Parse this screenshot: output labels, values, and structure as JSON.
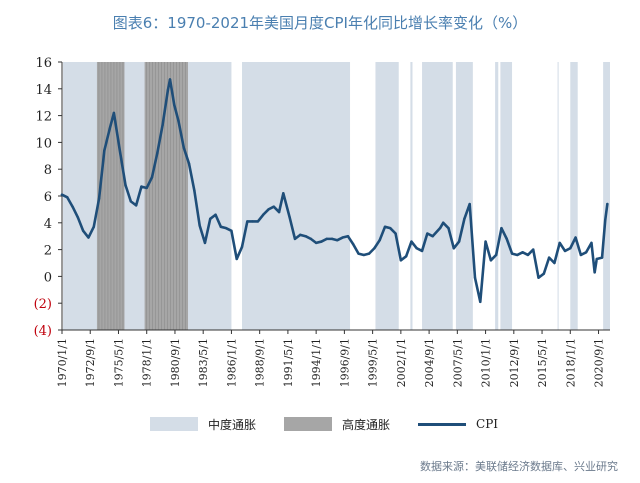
{
  "title": "图表6：1970-2021年美国月度CPI年化同比增长率变化（%）",
  "source": "数据来源：美联储经济数据库、兴业研究",
  "colors": {
    "title": "#4a7fb0",
    "mid_band": "#d4dde7",
    "high_band": "#a6a6a6",
    "cpi_line": "#1f4e79",
    "negative_tick": "#c0000c"
  },
  "legend": {
    "mid": "中度通胀",
    "high": "高度通胀",
    "cpi": "CPI"
  },
  "chart_data": {
    "type": "line",
    "title": "图表6：1970-2021年美国月度CPI年化同比增长率变化（%）",
    "ylim": [
      -4,
      16
    ],
    "y_ticks": [
      16,
      14,
      12,
      10,
      8,
      6,
      4,
      2,
      0,
      -2,
      -4
    ],
    "y_tick_labels": [
      "16",
      "14",
      "12",
      "10",
      "8",
      "6",
      "4",
      "2",
      "0",
      "(2)",
      "(4)"
    ],
    "xlim": [
      1970.0,
      2021.75
    ],
    "x_tick_labels": [
      "1970/1/1",
      "1972/9/1",
      "1975/5/1",
      "1978/1/1",
      "1980/9/1",
      "1983/5/1",
      "1986/1/1",
      "1988/9/1",
      "1991/5/1",
      "1994/1/1",
      "1996/9/1",
      "1999/5/1",
      "2002/1/1",
      "2004/9/1",
      "2007/5/1",
      "2010/1/1",
      "2012/9/1",
      "2015/5/1",
      "2018/1/1",
      "2020/9/1"
    ],
    "x_tick_values": [
      1970.0,
      1972.667,
      1975.333,
      1978.0,
      1980.667,
      1983.333,
      1986.0,
      1988.667,
      1991.333,
      1994.0,
      1996.667,
      1999.333,
      2002.0,
      2004.667,
      2007.333,
      2010.0,
      2012.667,
      2015.333,
      2018.0,
      2020.667
    ],
    "shaded_periods": {
      "mid_inflation": [
        [
          1970.1,
          1986.0
        ],
        [
          1987.0,
          1997.2
        ],
        [
          1999.6,
          2001.8
        ],
        [
          2002.9,
          2003.1
        ],
        [
          2004.0,
          2006.9
        ],
        [
          2007.2,
          2008.8
        ],
        [
          2010.9,
          2011.2
        ],
        [
          2011.4,
          2012.5
        ],
        [
          2016.8,
          2016.9
        ],
        [
          2018.0,
          2018.7
        ],
        [
          2021.1,
          2021.75
        ]
      ],
      "high_inflation": [
        [
          1973.3,
          1975.9
        ],
        [
          1977.8,
          1981.9
        ]
      ]
    },
    "series": [
      {
        "name": "CPI",
        "x": [
          1970.0,
          1970.5,
          1971.0,
          1971.5,
          1972.0,
          1972.5,
          1973.0,
          1973.5,
          1974.0,
          1974.5,
          1974.9,
          1975.5,
          1976.0,
          1976.5,
          1977.0,
          1977.5,
          1978.0,
          1978.5,
          1979.0,
          1979.5,
          1980.0,
          1980.2,
          1980.6,
          1981.0,
          1981.5,
          1982.0,
          1982.5,
          1983.0,
          1983.5,
          1984.0,
          1984.5,
          1985.0,
          1985.5,
          1986.0,
          1986.5,
          1987.0,
          1987.5,
          1988.0,
          1988.5,
          1989.0,
          1989.5,
          1990.0,
          1990.5,
          1990.9,
          1991.5,
          1992.0,
          1992.5,
          1993.0,
          1993.5,
          1994.0,
          1994.5,
          1995.0,
          1995.5,
          1996.0,
          1996.5,
          1997.0,
          1997.5,
          1998.0,
          1998.5,
          1999.0,
          1999.5,
          2000.0,
          2000.5,
          2001.0,
          2001.5,
          2002.0,
          2002.5,
          2003.0,
          2003.5,
          2004.0,
          2004.5,
          2005.0,
          2005.7,
          2006.0,
          2006.5,
          2007.0,
          2007.5,
          2008.0,
          2008.5,
          2009.0,
          2009.5,
          2010.0,
          2010.5,
          2011.0,
          2011.5,
          2012.0,
          2012.5,
          2013.0,
          2013.5,
          2014.0,
          2014.5,
          2015.0,
          2015.5,
          2016.0,
          2016.5,
          2017.0,
          2017.5,
          2018.0,
          2018.5,
          2019.0,
          2019.5,
          2020.0,
          2020.3,
          2020.5,
          2021.0,
          2021.3,
          2021.5
        ],
        "values": [
          6.1,
          5.9,
          5.2,
          4.4,
          3.4,
          2.9,
          3.7,
          5.8,
          9.4,
          11.0,
          12.2,
          9.2,
          6.8,
          5.6,
          5.3,
          6.7,
          6.6,
          7.4,
          9.2,
          11.3,
          13.9,
          14.7,
          12.8,
          11.6,
          9.6,
          8.4,
          6.4,
          3.8,
          2.5,
          4.3,
          4.6,
          3.7,
          3.6,
          3.4,
          1.3,
          2.2,
          4.1,
          4.1,
          4.1,
          4.6,
          5.0,
          5.2,
          4.8,
          6.2,
          4.4,
          2.8,
          3.1,
          3.0,
          2.8,
          2.5,
          2.6,
          2.8,
          2.8,
          2.7,
          2.9,
          3.0,
          2.4,
          1.7,
          1.6,
          1.7,
          2.1,
          2.7,
          3.7,
          3.6,
          3.2,
          1.2,
          1.5,
          2.6,
          2.1,
          1.9,
          3.2,
          3.0,
          3.6,
          4.0,
          3.6,
          2.1,
          2.6,
          4.3,
          5.4,
          -0.1,
          -1.9,
          2.6,
          1.2,
          1.6,
          3.6,
          2.8,
          1.7,
          1.6,
          1.8,
          1.6,
          2.0,
          -0.1,
          0.2,
          1.4,
          1.0,
          2.5,
          1.9,
          2.1,
          2.9,
          1.6,
          1.8,
          2.5,
          0.3,
          1.3,
          1.4,
          4.2,
          5.4
        ]
      }
    ]
  }
}
